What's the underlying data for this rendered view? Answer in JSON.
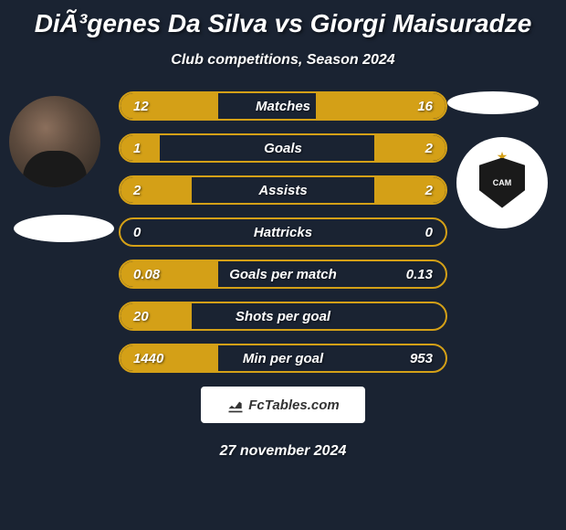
{
  "title": "DiÃ³genes Da Silva vs Giorgi Maisuradze",
  "subtitle": "Club competitions, Season 2024",
  "footer_logo_text": "FcTables.com",
  "footer_date": "27 november 2024",
  "colors": {
    "background": "#1a2332",
    "accent": "#d4a017",
    "text": "#ffffff",
    "logo_bg": "#ffffff",
    "logo_text": "#333333"
  },
  "typography": {
    "title_fontsize": 28,
    "subtitle_fontsize": 16,
    "stat_fontsize": 15,
    "footer_fontsize": 16
  },
  "stats": [
    {
      "label": "Matches",
      "left_val": "12",
      "right_val": "16",
      "left_pct": 30,
      "right_pct": 40
    },
    {
      "label": "Goals",
      "left_val": "1",
      "right_val": "2",
      "left_pct": 12,
      "right_pct": 22
    },
    {
      "label": "Assists",
      "left_val": "2",
      "right_val": "2",
      "left_pct": 22,
      "right_pct": 22
    },
    {
      "label": "Hattricks",
      "left_val": "0",
      "right_val": "0",
      "left_pct": 0,
      "right_pct": 0
    },
    {
      "label": "Goals per match",
      "left_val": "0.08",
      "right_val": "0.13",
      "left_pct": 30,
      "right_pct": 0
    },
    {
      "label": "Shots per goal",
      "left_val": "20",
      "right_val": "",
      "left_pct": 22,
      "right_pct": 0
    },
    {
      "label": "Min per goal",
      "left_val": "1440",
      "right_val": "953",
      "left_pct": 30,
      "right_pct": 0
    }
  ],
  "badge_text": "CAM"
}
